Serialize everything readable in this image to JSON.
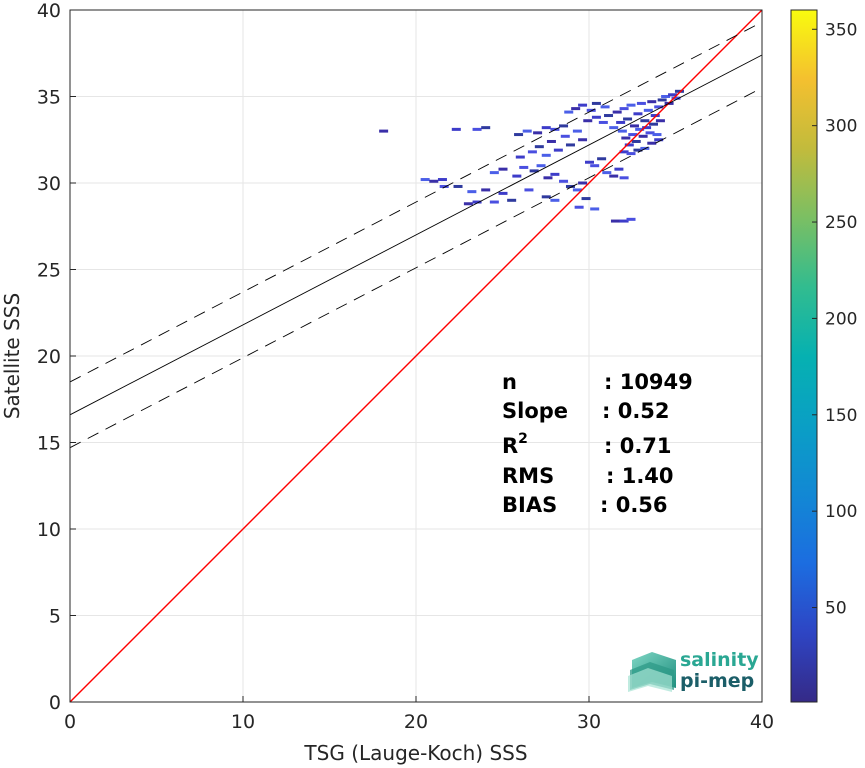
{
  "chart_data": {
    "type": "scatter",
    "xlabel": "TSG (Lauge-Koch) SSS",
    "ylabel": "Satellite SSS",
    "xlim": [
      0,
      40
    ],
    "ylim": [
      0,
      40
    ],
    "xticks": [
      "0",
      "10",
      "20",
      "30",
      "40"
    ],
    "yticks": [
      "0",
      "5",
      "10",
      "15",
      "20",
      "25",
      "30",
      "35",
      "40"
    ],
    "grid": true,
    "colorbar": {
      "range": [
        1,
        360
      ],
      "ticks": [
        "50",
        "100",
        "150",
        "200",
        "250",
        "300",
        "350"
      ],
      "colormap": "parula"
    },
    "lines": [
      {
        "kind": "identity",
        "color": "#ff0000",
        "intercept": 0,
        "slope": 1
      },
      {
        "kind": "fit",
        "color": "#000000",
        "intercept": 16.6,
        "slope": 0.52
      },
      {
        "kind": "fit-upper",
        "color": "#000000",
        "intercept": 18.5,
        "slope": 0.52,
        "dash": true
      },
      {
        "kind": "fit-lower",
        "color": "#000000",
        "intercept": 14.7,
        "slope": 0.52,
        "dash": true
      }
    ],
    "density_points": [
      [
        18.1,
        33.0
      ],
      [
        22.3,
        33.1
      ],
      [
        23.5,
        33.1
      ],
      [
        24.0,
        33.2
      ],
      [
        20.5,
        30.2
      ],
      [
        21.0,
        30.1
      ],
      [
        21.5,
        30.2
      ],
      [
        21.6,
        29.8
      ],
      [
        22.4,
        29.8
      ],
      [
        23.2,
        29.5
      ],
      [
        24.0,
        29.6
      ],
      [
        25.0,
        29.4
      ],
      [
        26.5,
        29.6
      ],
      [
        27.5,
        29.2
      ],
      [
        28.0,
        29.0
      ],
      [
        23.0,
        28.8
      ],
      [
        23.5,
        28.9
      ],
      [
        24.5,
        28.9
      ],
      [
        25.5,
        29.0
      ],
      [
        24.5,
        30.6
      ],
      [
        25.0,
        30.8
      ],
      [
        25.8,
        30.4
      ],
      [
        26.2,
        30.9
      ],
      [
        26.8,
        30.7
      ],
      [
        27.2,
        31.0
      ],
      [
        27.6,
        30.3
      ],
      [
        28.0,
        30.5
      ],
      [
        28.5,
        30.1
      ],
      [
        28.9,
        29.8
      ],
      [
        29.3,
        29.6
      ],
      [
        29.6,
        30.0
      ],
      [
        26.0,
        31.5
      ],
      [
        26.7,
        31.8
      ],
      [
        27.1,
        32.1
      ],
      [
        27.5,
        31.6
      ],
      [
        27.8,
        32.4
      ],
      [
        28.2,
        31.9
      ],
      [
        28.6,
        32.7
      ],
      [
        28.9,
        32.2
      ],
      [
        29.3,
        33.0
      ],
      [
        29.6,
        32.5
      ],
      [
        30.0,
        31.2
      ],
      [
        30.3,
        31.0
      ],
      [
        30.7,
        31.4
      ],
      [
        31.0,
        30.6
      ],
      [
        31.4,
        30.4
      ],
      [
        31.7,
        30.8
      ],
      [
        32.0,
        30.3
      ],
      [
        25.9,
        32.8
      ],
      [
        26.4,
        33.0
      ],
      [
        27.0,
        32.9
      ],
      [
        27.5,
        33.2
      ],
      [
        28.0,
        33.1
      ],
      [
        28.5,
        33.3
      ],
      [
        28.8,
        34.1
      ],
      [
        29.2,
        34.3
      ],
      [
        29.6,
        34.5
      ],
      [
        30.1,
        34.2
      ],
      [
        30.4,
        34.6
      ],
      [
        30.9,
        34.4
      ],
      [
        29.9,
        33.6
      ],
      [
        30.4,
        33.8
      ],
      [
        30.8,
        33.5
      ],
      [
        31.1,
        33.9
      ],
      [
        31.4,
        33.2
      ],
      [
        31.6,
        34.1
      ],
      [
        31.8,
        33.5
      ],
      [
        32.0,
        34.3
      ],
      [
        32.2,
        33.7
      ],
      [
        32.4,
        34.5
      ],
      [
        32.6,
        33.3
      ],
      [
        32.8,
        34.0
      ],
      [
        33.0,
        34.6
      ],
      [
        33.2,
        33.6
      ],
      [
        33.4,
        34.2
      ],
      [
        33.6,
        34.7
      ],
      [
        33.8,
        33.9
      ],
      [
        34.0,
        34.4
      ],
      [
        34.2,
        34.8
      ],
      [
        34.4,
        35.0
      ],
      [
        34.6,
        34.6
      ],
      [
        34.8,
        35.1
      ],
      [
        35.0,
        34.9
      ],
      [
        35.2,
        35.3
      ],
      [
        31.9,
        33.0
      ],
      [
        32.1,
        32.6
      ],
      [
        32.3,
        32.2
      ],
      [
        32.5,
        32.8
      ],
      [
        32.7,
        32.4
      ],
      [
        32.9,
        33.1
      ],
      [
        33.1,
        32.7
      ],
      [
        33.3,
        33.2
      ],
      [
        33.5,
        32.9
      ],
      [
        33.7,
        33.4
      ],
      [
        33.9,
        32.8
      ],
      [
        34.1,
        33.6
      ],
      [
        32.0,
        31.8
      ],
      [
        32.4,
        31.7
      ],
      [
        32.8,
        31.9
      ],
      [
        33.2,
        32.0
      ],
      [
        33.6,
        32.3
      ],
      [
        34.0,
        32.5
      ],
      [
        29.4,
        28.6
      ],
      [
        29.8,
        29.1
      ],
      [
        30.3,
        28.5
      ],
      [
        31.5,
        27.8
      ],
      [
        32.0,
        27.8
      ],
      [
        32.4,
        27.9
      ]
    ],
    "stats": [
      {
        "label": "n",
        "value": ": 10949"
      },
      {
        "label": "Slope",
        "value": ": 0.52"
      },
      {
        "label": "R",
        "sup": "2",
        "value": ": 0.71"
      },
      {
        "label": "RMS",
        "value": ": 1.40"
      },
      {
        "label": "BIAS",
        "value": ": 0.56"
      }
    ]
  },
  "logo": {
    "line1": "salinity",
    "line2": "pi-mep"
  }
}
